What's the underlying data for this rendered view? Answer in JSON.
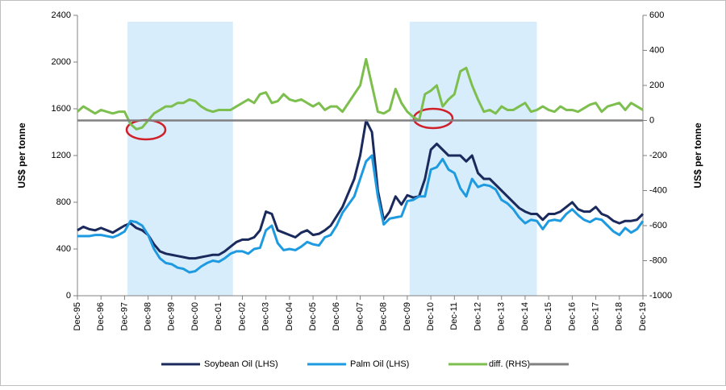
{
  "chart_data": {
    "type": "line",
    "categories": [
      "Dec-95",
      null,
      null,
      null,
      "Dec-96",
      null,
      null,
      null,
      "Dec-97",
      null,
      null,
      null,
      "Dec-98",
      null,
      null,
      null,
      "Dec-99",
      null,
      null,
      null,
      "Dec-00",
      null,
      null,
      null,
      "Dec-01",
      null,
      null,
      null,
      "Dec-02",
      null,
      null,
      null,
      "Dec-03",
      null,
      null,
      null,
      "Dec-04",
      null,
      null,
      null,
      "Dec-05",
      null,
      null,
      null,
      "Dec-06",
      null,
      null,
      null,
      "Dec-07",
      null,
      null,
      null,
      "Dec-08",
      null,
      null,
      null,
      "Dec-09",
      null,
      null,
      null,
      "Dec-10",
      null,
      null,
      null,
      "Dec-11",
      null,
      null,
      null,
      "Dec-12",
      null,
      null,
      null,
      "Dec-13",
      null,
      null,
      null,
      "Dec-14",
      null,
      null,
      null,
      "Dec-15",
      null,
      null,
      null,
      "Dec-16",
      null,
      null,
      null,
      "Dec-17",
      null,
      null,
      null,
      "Dec-18",
      null,
      null,
      null,
      "Dec-19"
    ],
    "series": [
      {
        "name": "Soybean Oil (LHS)",
        "color": "#1b2a5c",
        "axis": "y",
        "values": [
          560,
          590,
          570,
          560,
          580,
          560,
          540,
          570,
          600,
          620,
          580,
          560,
          520,
          440,
          380,
          360,
          350,
          340,
          330,
          320,
          320,
          330,
          340,
          350,
          350,
          380,
          420,
          460,
          480,
          480,
          500,
          560,
          720,
          700,
          560,
          540,
          520,
          500,
          540,
          560,
          520,
          530,
          560,
          600,
          680,
          760,
          880,
          1000,
          1200,
          1500,
          1400,
          900,
          650,
          720,
          850,
          780,
          860,
          840,
          850,
          1000,
          1250,
          1300,
          1250,
          1200,
          1200,
          1200,
          1150,
          1200,
          1050,
          1000,
          1000,
          950,
          900,
          850,
          800,
          750,
          720,
          700,
          700,
          650,
          700,
          700,
          720,
          760,
          800,
          740,
          720,
          720,
          760,
          700,
          680,
          640,
          620,
          640,
          640,
          650,
          700
        ]
      },
      {
        "name": "Palm Oil (LHS)",
        "color": "#1e9be0",
        "axis": "y",
        "values": [
          510,
          510,
          510,
          520,
          520,
          510,
          500,
          520,
          550,
          640,
          630,
          600,
          520,
          400,
          320,
          280,
          270,
          240,
          230,
          200,
          210,
          250,
          280,
          300,
          290,
          320,
          360,
          380,
          380,
          360,
          400,
          410,
          560,
          600,
          450,
          390,
          400,
          390,
          420,
          460,
          440,
          430,
          500,
          520,
          600,
          710,
          780,
          850,
          1000,
          1150,
          1200,
          850,
          610,
          660,
          670,
          680,
          810,
          820,
          850,
          850,
          1080,
          1100,
          1170,
          1080,
          1050,
          920,
          850,
          1000,
          930,
          950,
          940,
          910,
          820,
          790,
          740,
          670,
          620,
          650,
          640,
          570,
          640,
          650,
          640,
          700,
          740,
          690,
          650,
          630,
          660,
          650,
          600,
          550,
          520,
          580,
          540,
          570,
          640
        ]
      },
      {
        "name": "diff. (RHS)",
        "color": "#7dbf4e",
        "axis": "y2",
        "values": [
          50,
          80,
          60,
          40,
          60,
          50,
          40,
          50,
          50,
          -20,
          -50,
          -40,
          0,
          40,
          60,
          80,
          80,
          100,
          100,
          120,
          110,
          80,
          60,
          50,
          60,
          60,
          60,
          80,
          100,
          120,
          100,
          150,
          160,
          100,
          110,
          150,
          120,
          110,
          120,
          100,
          80,
          100,
          60,
          80,
          80,
          50,
          100,
          150,
          200,
          350,
          200,
          50,
          40,
          60,
          180,
          100,
          50,
          20,
          0,
          150,
          170,
          200,
          80,
          120,
          150,
          280,
          300,
          200,
          120,
          50,
          60,
          40,
          80,
          60,
          60,
          80,
          100,
          50,
          60,
          80,
          60,
          50,
          80,
          60,
          60,
          50,
          70,
          90,
          100,
          50,
          80,
          90,
          100,
          60,
          100,
          80,
          60
        ]
      }
    ],
    "reference_line": {
      "value": 0,
      "axis": "y2",
      "color": "#808080"
    },
    "shaded_periods": [
      {
        "start": 8.5,
        "end": 26.4,
        "color": "#d8edfb"
      },
      {
        "start": 56.4,
        "end": 78,
        "color": "#d8edfb"
      }
    ],
    "ylim": [
      0,
      2400
    ],
    "yticks": [
      0,
      400,
      800,
      1200,
      1600,
      2000,
      2400
    ],
    "y2lim": [
      -1000,
      600
    ],
    "y2ticks": [
      -1000,
      -800,
      -600,
      -400,
      -200,
      0,
      200,
      400,
      600
    ],
    "ylabel": "US$ per tonne",
    "y2label": "US$ per tonne",
    "legend": "bottom"
  }
}
